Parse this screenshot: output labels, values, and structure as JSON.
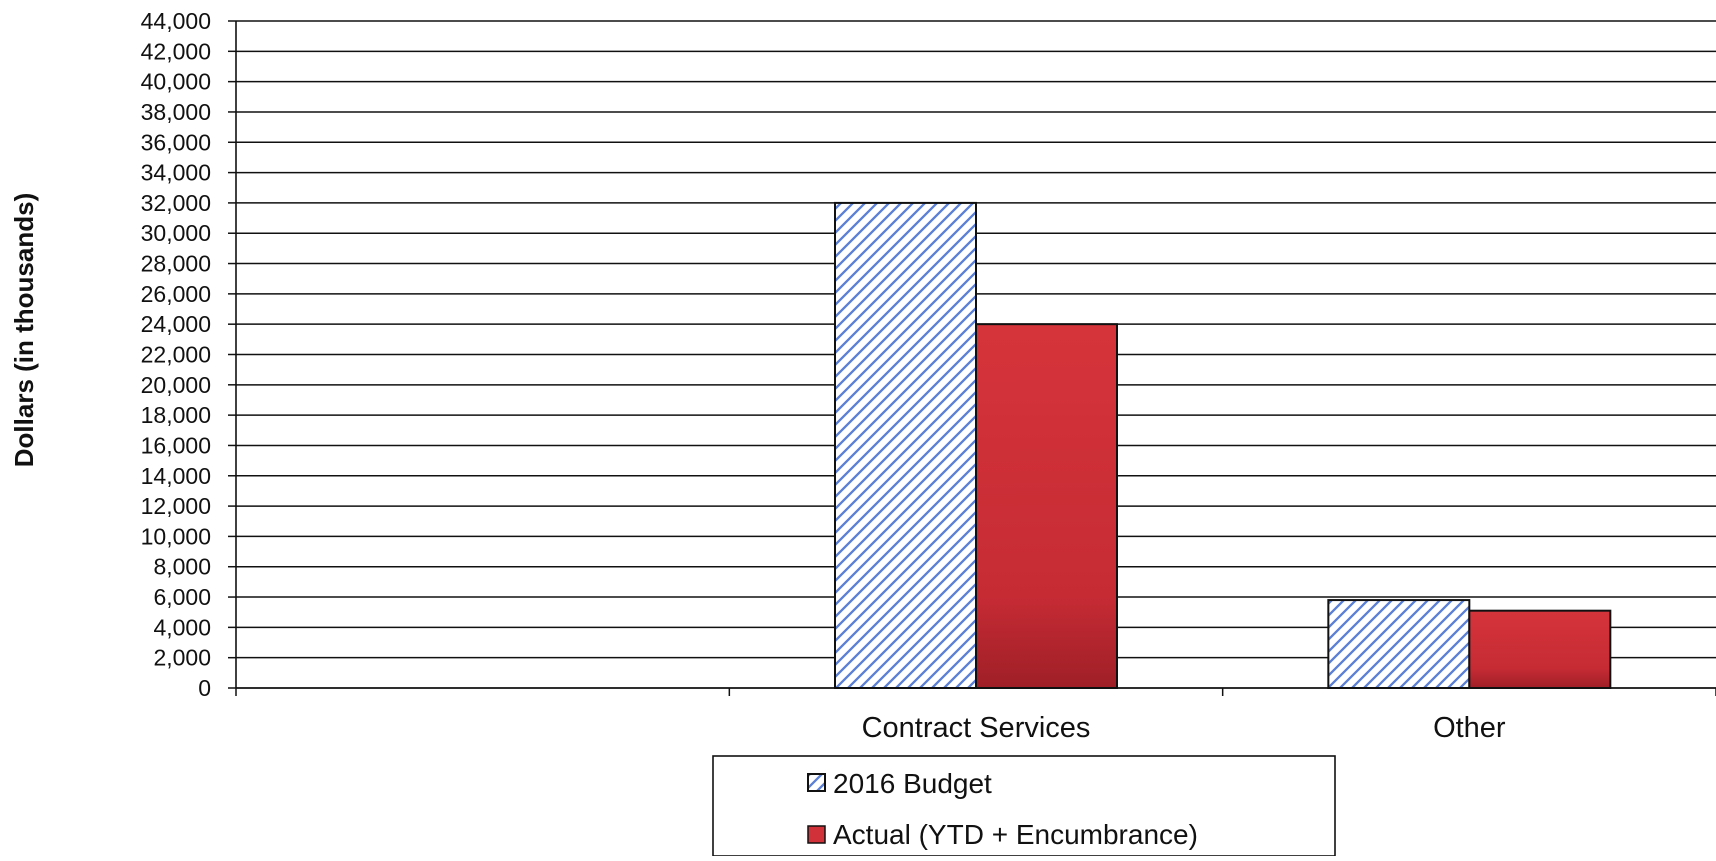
{
  "chart_data": {
    "type": "bar",
    "categories": [
      "",
      "Contract Services",
      "Other"
    ],
    "series": [
      {
        "name": "2016 Budget",
        "values": [
          0,
          32000,
          5800
        ],
        "fill": "hatch",
        "color": "#5b7fd6"
      },
      {
        "name": "Actual (YTD + Encumbrance)",
        "values": [
          0,
          24000,
          5100
        ],
        "fill": "solid",
        "color": "#d1323a"
      }
    ],
    "title": "",
    "xlabel": "",
    "ylabel": "Dollars (in thousands)",
    "ylim": [
      0,
      44000
    ],
    "ytick_step": 2000,
    "grid": true,
    "legend_position": "bottom"
  },
  "colors": {
    "axis": "#111111",
    "grid": "#111111",
    "budget_hatch": "#5b7fd6",
    "actual_fill": "#d1323a",
    "background": "#ffffff"
  }
}
